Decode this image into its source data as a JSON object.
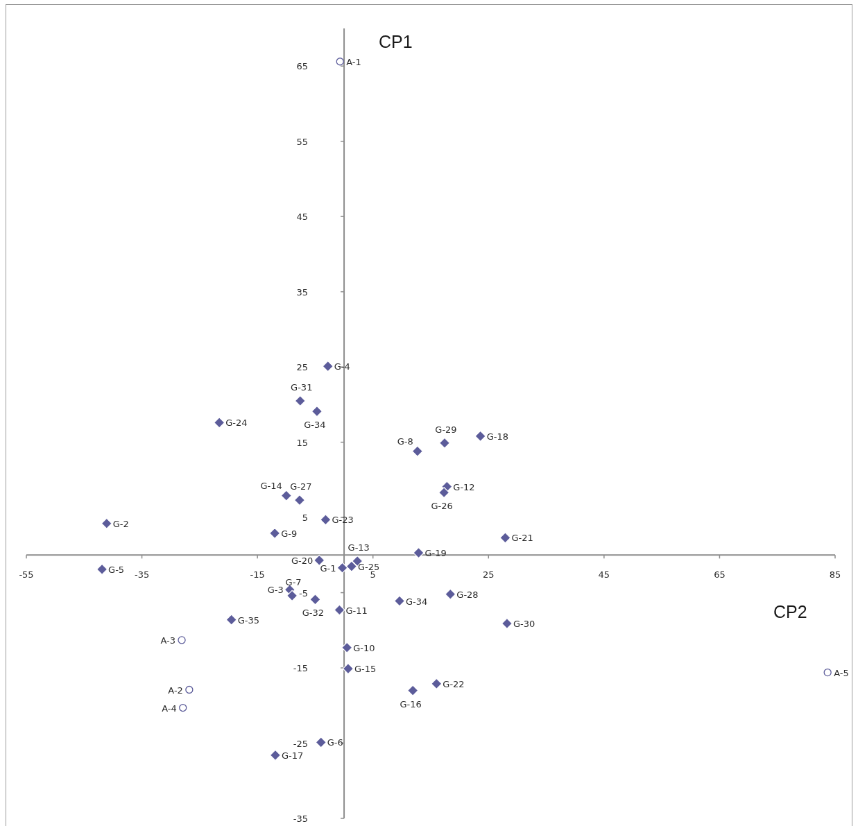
{
  "chart_data": {
    "type": "scatter",
    "xlabel": "CP2",
    "ylabel": "CP1",
    "xlim": [
      -55,
      85
    ],
    "ylim": [
      -35,
      70
    ],
    "xticks": [
      -55,
      -35,
      -15,
      5,
      25,
      45,
      65,
      85
    ],
    "yticks": [
      -35,
      -25,
      -15,
      -5,
      5,
      15,
      25,
      35,
      45,
      55,
      65
    ],
    "series": [
      {
        "type": "scatter",
        "marker": "diamond",
        "color": "#5c5c9a",
        "x": [
          -0.3,
          -41.1,
          -9.4,
          -2.8,
          -41.9,
          -4.0,
          -9.0,
          12.7,
          -12.0,
          0.5,
          -0.8,
          17.8,
          2.3,
          -10.0,
          0.7,
          11.9,
          -11.9,
          23.6,
          12.9,
          -4.3,
          27.9,
          16.0,
          -3.2,
          -21.6,
          1.3,
          17.3,
          -7.7,
          18.4,
          17.4,
          28.2,
          -7.6,
          -5.0,
          -4.7,
          9.6,
          -19.5
        ],
        "values": [
          -1.7,
          4.2,
          -4.6,
          25.1,
          -1.9,
          -24.9,
          -5.4,
          13.8,
          2.9,
          -12.3,
          -7.3,
          9.1,
          -0.8,
          7.9,
          -15.1,
          -18.0,
          -26.6,
          15.8,
          0.3,
          -0.7,
          2.3,
          -17.1,
          4.7,
          17.6,
          -1.5,
          8.3,
          7.3,
          -5.2,
          14.9,
          -9.1,
          20.5,
          -5.9,
          19.1,
          -6.1,
          -8.6
        ],
        "value_labels": [
          "G-1",
          "G-2",
          "G-3",
          "G-4",
          "G-5",
          "G-6",
          "G-7",
          "G-8",
          "G-9",
          "G-10",
          "G-11",
          "G-12",
          "G-13",
          "G-14",
          "G-15",
          "G-16",
          "G-17",
          "G-18",
          "G-19",
          "G-20",
          "G-21",
          "G-22",
          "G-23",
          "G-24",
          "G-25",
          "G-26",
          "G-27",
          "G-28",
          "G-29",
          "G-30",
          "G-31",
          "G-32",
          "G-34",
          "G-34",
          "G-35"
        ]
      },
      {
        "type": "scatter",
        "marker": "circle",
        "color": "#5c5c9a",
        "x": [
          -0.7,
          -26.8,
          -28.1,
          -27.9,
          83.7
        ],
        "values": [
          65.6,
          -17.9,
          -11.3,
          -20.3,
          -15.6
        ],
        "value_labels": [
          "A-1",
          "A-2",
          "A-3",
          "A-4",
          "A-5"
        ]
      }
    ]
  }
}
